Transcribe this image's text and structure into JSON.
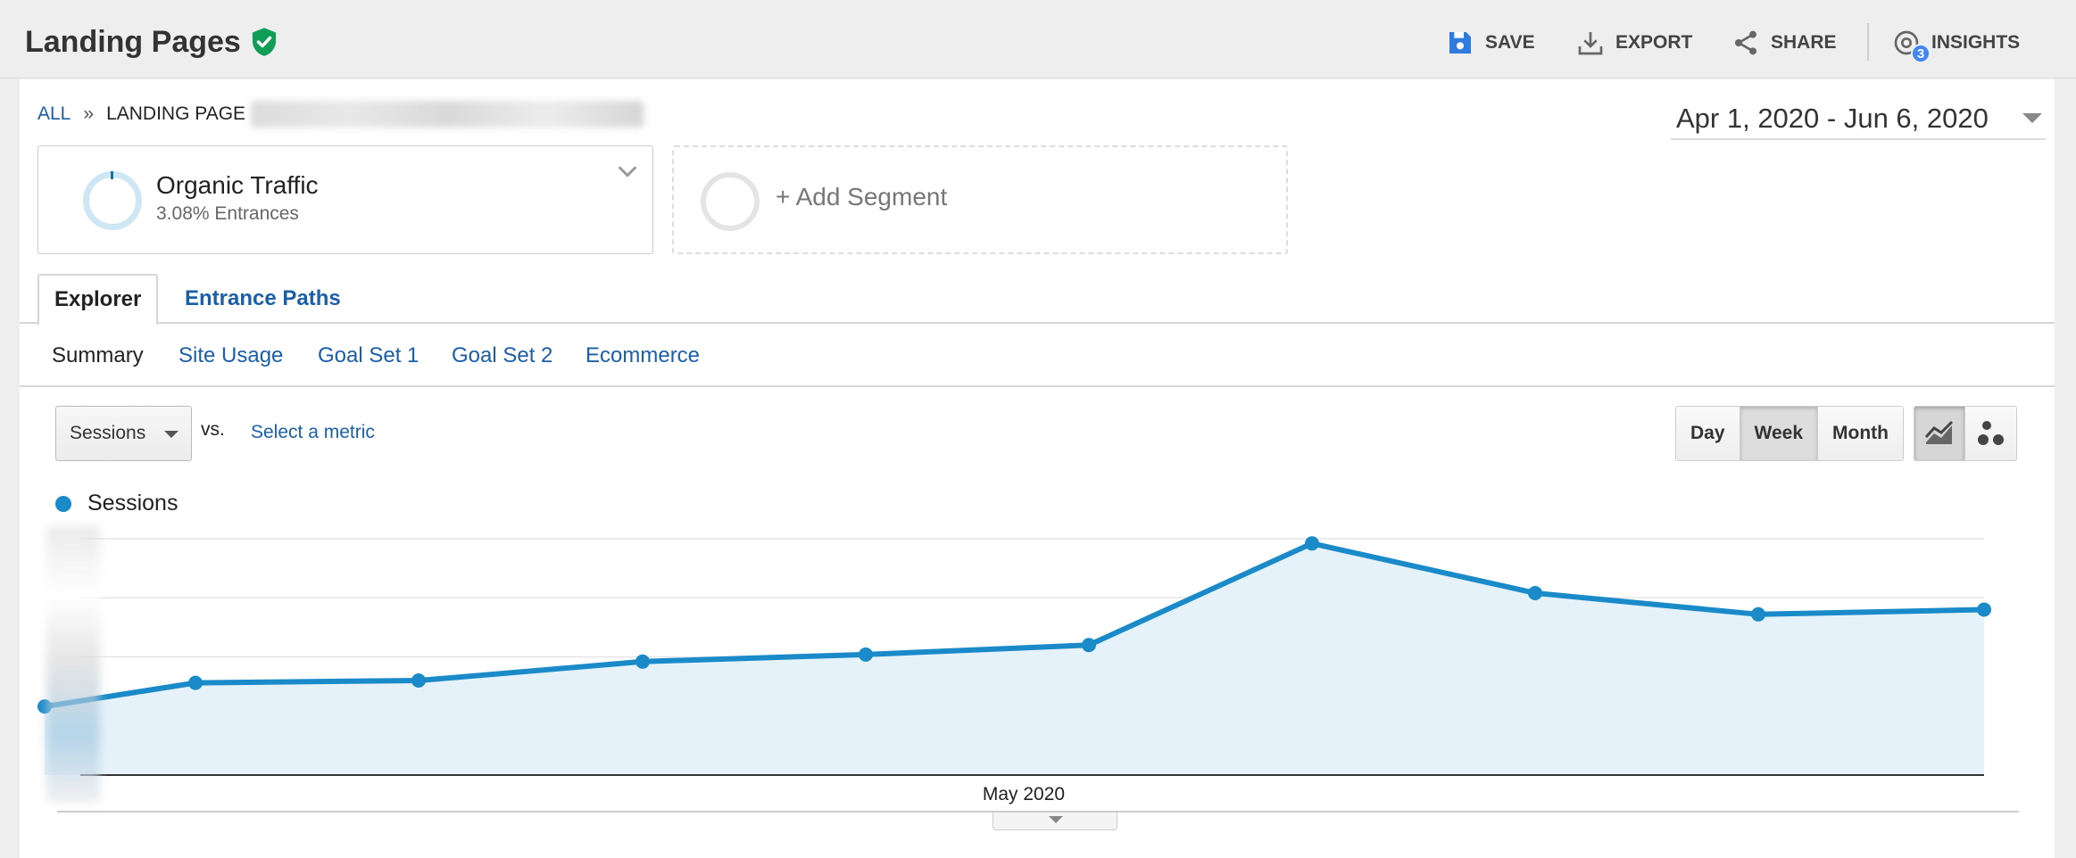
{
  "header": {
    "title": "Landing Pages",
    "save_label": "SAVE",
    "export_label": "EXPORT",
    "share_label": "SHARE",
    "insights_label": "INSIGHTS",
    "insights_count": "3"
  },
  "breadcrumb": {
    "all_label": "ALL",
    "separator": "»",
    "current_label": "LANDING PAGE"
  },
  "date_range": "Apr 1, 2020 - Jun 6, 2020",
  "segments": {
    "active": {
      "name": "Organic Traffic",
      "subtitle": "3.08% Entrances"
    },
    "add_label": "+ Add Segment"
  },
  "tabs": [
    {
      "label": "Explorer",
      "active": true
    },
    {
      "label": "Entrance Paths",
      "active": false
    }
  ],
  "subnav": [
    {
      "label": "Summary",
      "active": true
    },
    {
      "label": "Site Usage",
      "active": false
    },
    {
      "label": "Goal Set 1",
      "active": false
    },
    {
      "label": "Goal Set 2",
      "active": false
    },
    {
      "label": "Ecommerce",
      "active": false
    }
  ],
  "metric": {
    "selected": "Sessions",
    "vs_label": "vs.",
    "select_link": "Select a metric"
  },
  "granularity": [
    {
      "label": "Day",
      "active": false
    },
    {
      "label": "Week",
      "active": true
    },
    {
      "label": "Month",
      "active": false
    }
  ],
  "chart_types": [
    {
      "icon": "line-chart-icon",
      "active": true
    },
    {
      "icon": "motion-chart-icon",
      "active": false
    }
  ],
  "colors": {
    "accent": "#1a8ac9",
    "area_fill": "#e6f2fa",
    "link": "#1a5fa8",
    "shield": "#0f9d58"
  },
  "chart_data": {
    "type": "area",
    "series": [
      {
        "name": "Sessions",
        "values": [
          0.29,
          0.39,
          0.4,
          0.48,
          0.51,
          0.55,
          0.98,
          0.77,
          0.68,
          0.7
        ]
      }
    ],
    "x_tick_labels": [
      "May 2020"
    ],
    "ylim": [
      0,
      1
    ],
    "grid": true,
    "legend": "top-left",
    "note": "Y-axis labels obscured; values relative to top gridline"
  }
}
